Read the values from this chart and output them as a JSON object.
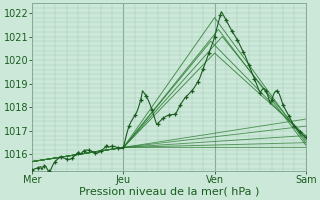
{
  "background_color": "#cce8d8",
  "plot_bg_color": "#cce8d8",
  "grid_color_fine": "#a8ccb8",
  "grid_color_major": "#88aa98",
  "line_color_dark": "#1a5c20",
  "line_color_mid": "#2a7a30",
  "line_color_light": "#4a9a50",
  "xlabel": "Pression niveau de la mer( hPa )",
  "xtick_labels": [
    "Mer",
    "Jeu",
    "Ven",
    "Sam"
  ],
  "xtick_positions": [
    0,
    48,
    96,
    144
  ],
  "ylim": [
    1015.3,
    1022.4
  ],
  "yticks": [
    1016,
    1017,
    1018,
    1019,
    1020,
    1021,
    1022
  ],
  "total_hours": 144,
  "xlabel_fontsize": 8,
  "tick_fontsize": 7
}
